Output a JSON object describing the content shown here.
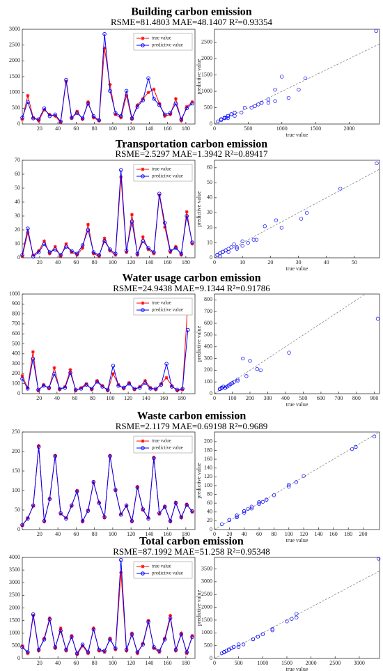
{
  "chart_data": [
    {
      "type": "line",
      "title": "Building carbon emission",
      "subtitle": "RSME=81.4803  MAE=48.1407 R²=0.93354",
      "x": [
        1,
        7,
        13,
        19,
        25,
        31,
        37,
        43,
        49,
        55,
        61,
        67,
        73,
        79,
        85,
        91,
        97,
        103,
        109,
        115,
        121,
        127,
        133,
        139,
        145,
        151,
        157,
        163,
        169,
        175,
        181,
        187
      ],
      "xlim": [
        1,
        190
      ],
      "xticks": [
        20,
        40,
        60,
        80,
        100,
        120,
        140,
        160,
        180
      ],
      "ylim": [
        0,
        3000
      ],
      "yticks": [
        0,
        500,
        1000,
        1500,
        2000,
        2500,
        3000
      ],
      "series": [
        {
          "name": "true value",
          "color": "#ff0000",
          "marker": "asterisk",
          "values": [
            150,
            900,
            200,
            100,
            450,
            300,
            250,
            50,
            1350,
            180,
            400,
            150,
            700,
            200,
            100,
            2400,
            1250,
            300,
            200,
            900,
            150,
            600,
            800,
            1000,
            1100,
            650,
            250,
            300,
            800,
            100,
            550,
            700
          ]
        },
        {
          "name": "predictive value",
          "color": "#0000ff",
          "marker": "circle",
          "values": [
            200,
            700,
            180,
            150,
            500,
            250,
            300,
            80,
            1400,
            200,
            350,
            180,
            650,
            250,
            120,
            2850,
            1050,
            350,
            250,
            1050,
            180,
            550,
            750,
            1450,
            800,
            600,
            300,
            350,
            650,
            150,
            500,
            650
          ]
        }
      ]
    },
    {
      "type": "scatter",
      "x_label": "true value",
      "y_label": "predictive value",
      "color": "#0000ff",
      "xlim": [
        0,
        2450
      ],
      "xticks": [
        0,
        500,
        1000,
        1500,
        2000
      ],
      "ylim": [
        0,
        2900
      ],
      "yticks": [
        0,
        500,
        1000,
        1500,
        2000,
        2500
      ],
      "x": [
        150,
        900,
        200,
        100,
        450,
        300,
        250,
        50,
        1350,
        180,
        400,
        150,
        700,
        200,
        100,
        2400,
        1250,
        300,
        200,
        900,
        150,
        600,
        800,
        1000,
        1100,
        650,
        250,
        300,
        800,
        100,
        550,
        700
      ],
      "y": [
        200,
        700,
        180,
        150,
        500,
        250,
        300,
        80,
        1400,
        200,
        350,
        180,
        650,
        250,
        120,
        2850,
        1050,
        350,
        250,
        1050,
        180,
        550,
        750,
        1450,
        800,
        600,
        300,
        350,
        650,
        150,
        500,
        650
      ]
    },
    {
      "type": "line",
      "title": "Transportation carbon emission",
      "subtitle": "RSME=2.5297  MAE=1.3942 R²=0.89417",
      "x": [
        1,
        7,
        13,
        19,
        25,
        31,
        37,
        43,
        49,
        55,
        61,
        67,
        73,
        79,
        85,
        91,
        97,
        103,
        109,
        115,
        121,
        127,
        133,
        139,
        145,
        151,
        157,
        163,
        169,
        175,
        181,
        187
      ],
      "xlim": [
        1,
        190
      ],
      "xticks": [
        20,
        40,
        60,
        80,
        100,
        120,
        140,
        160,
        180
      ],
      "ylim": [
        0,
        70
      ],
      "yticks": [
        0,
        10,
        20,
        30,
        40,
        50,
        60,
        70
      ],
      "series": [
        {
          "name": "true value",
          "color": "#ff0000",
          "marker": "asterisk",
          "values": [
            1,
            18,
            2,
            5,
            12,
            3,
            8,
            1,
            10,
            4,
            2,
            7,
            24,
            3,
            1,
            14,
            5,
            2,
            58,
            4,
            31,
            2,
            15,
            6,
            3,
            45,
            22,
            4,
            8,
            2,
            33,
            10
          ]
        },
        {
          "name": "predictive value",
          "color": "#0000ff",
          "marker": "circle",
          "values": [
            2,
            21,
            1,
            4,
            10,
            4,
            6,
            2,
            8,
            5,
            3,
            9,
            20,
            4,
            2,
            12,
            6,
            3,
            63,
            5,
            26,
            3,
            12,
            7,
            4,
            46,
            25,
            5,
            7,
            3,
            30,
            11
          ]
        }
      ]
    },
    {
      "type": "scatter",
      "x_label": "true value",
      "y_label": "predictive value",
      "color": "#0000ff",
      "xlim": [
        0,
        59
      ],
      "xticks": [
        0,
        10,
        20,
        30,
        40,
        50
      ],
      "ylim": [
        0,
        65
      ],
      "yticks": [
        0,
        10,
        20,
        30,
        40,
        50,
        60
      ],
      "x": [
        1,
        18,
        2,
        5,
        12,
        3,
        8,
        1,
        10,
        4,
        2,
        7,
        24,
        3,
        1,
        14,
        5,
        2,
        58,
        4,
        31,
        2,
        15,
        6,
        3,
        45,
        22,
        4,
        8,
        2,
        33,
        10
      ],
      "y": [
        2,
        21,
        1,
        4,
        10,
        4,
        6,
        2,
        8,
        5,
        3,
        9,
        20,
        4,
        2,
        12,
        6,
        3,
        63,
        5,
        26,
        3,
        12,
        7,
        4,
        46,
        25,
        5,
        7,
        3,
        30,
        11
      ]
    },
    {
      "type": "line",
      "title": "Water usage carbon emission",
      "subtitle": "RSME=24.9438  MAE=9.1344 R²=0.91786",
      "x": [
        1,
        7,
        13,
        19,
        25,
        31,
        37,
        43,
        49,
        55,
        61,
        67,
        73,
        79,
        85,
        91,
        97,
        103,
        109,
        115,
        121,
        127,
        133,
        139,
        145,
        151,
        157,
        163,
        169,
        175,
        181,
        187
      ],
      "xlim": [
        1,
        195
      ],
      "xticks": [
        20,
        40,
        60,
        80,
        100,
        120,
        140,
        160,
        180
      ],
      "ylim": [
        0,
        1000
      ],
      "yticks": [
        0,
        100,
        200,
        300,
        400,
        500,
        600,
        700,
        800,
        900,
        1000
      ],
      "series": [
        {
          "name": "true value",
          "color": "#ff0000",
          "marker": "asterisk",
          "values": [
            180,
            60,
            420,
            30,
            90,
            50,
            260,
            40,
            70,
            240,
            30,
            60,
            100,
            40,
            130,
            80,
            30,
            200,
            90,
            50,
            110,
            40,
            70,
            130,
            60,
            40,
            100,
            160,
            80,
            30,
            40,
            920
          ]
        },
        {
          "name": "predictive value",
          "color": "#0000ff",
          "marker": "circle",
          "values": [
            150,
            50,
            350,
            40,
            80,
            60,
            200,
            50,
            60,
            210,
            40,
            50,
            90,
            50,
            120,
            70,
            40,
            280,
            80,
            60,
            100,
            50,
            60,
            110,
            50,
            50,
            90,
            300,
            70,
            40,
            50,
            640
          ]
        }
      ]
    },
    {
      "type": "scatter",
      "x_label": "true value",
      "y_label": "predictive value",
      "color": "#0000ff",
      "xlim": [
        0,
        930
      ],
      "xticks": [
        0,
        100,
        200,
        300,
        400,
        500,
        600,
        700,
        800,
        900
      ],
      "ylim": [
        0,
        850
      ],
      "yticks": [
        0,
        100,
        200,
        300,
        400,
        500,
        600,
        700,
        800
      ],
      "x": [
        180,
        60,
        420,
        30,
        90,
        50,
        260,
        40,
        70,
        240,
        30,
        60,
        100,
        40,
        130,
        80,
        30,
        200,
        90,
        50,
        110,
        40,
        70,
        130,
        60,
        40,
        100,
        160,
        80,
        30,
        40,
        920
      ],
      "y": [
        150,
        50,
        350,
        40,
        80,
        60,
        200,
        50,
        60,
        210,
        40,
        50,
        90,
        50,
        120,
        70,
        40,
        280,
        80,
        60,
        100,
        50,
        60,
        110,
        50,
        50,
        90,
        300,
        70,
        40,
        50,
        640
      ]
    },
    {
      "type": "line",
      "title": "Waste carbon emission",
      "subtitle": "RSME=2.1179  MAE=0.69198 R²=0.9689",
      "x": [
        1,
        7,
        13,
        19,
        25,
        31,
        37,
        43,
        49,
        55,
        61,
        67,
        73,
        79,
        85,
        91,
        97,
        103,
        109,
        115,
        121,
        127,
        133,
        139,
        145,
        151,
        157,
        163,
        169,
        175,
        181,
        187
      ],
      "xlim": [
        1,
        190
      ],
      "xticks": [
        20,
        40,
        60,
        80,
        100,
        120,
        140,
        160,
        180
      ],
      "ylim": [
        0,
        250
      ],
      "yticks": [
        0,
        50,
        100,
        150,
        200,
        250
      ],
      "series": [
        {
          "name": "true value",
          "color": "#ff0000",
          "marker": "asterisk",
          "values": [
            10,
            30,
            60,
            215,
            20,
            80,
            190,
            40,
            30,
            60,
            100,
            20,
            50,
            120,
            70,
            30,
            190,
            100,
            40,
            60,
            20,
            110,
            50,
            30,
            185,
            40,
            60,
            20,
            70,
            30,
            65,
            45
          ]
        },
        {
          "name": "predictive value",
          "color": "#0000ff",
          "marker": "circle",
          "values": [
            12,
            28,
            62,
            212,
            22,
            78,
            188,
            42,
            28,
            62,
            98,
            22,
            48,
            122,
            68,
            32,
            188,
            102,
            38,
            62,
            22,
            108,
            52,
            28,
            183,
            42,
            58,
            22,
            68,
            32,
            63,
            47
          ]
        }
      ]
    },
    {
      "type": "scatter",
      "x_label": "true value",
      "y_label": "predictive value",
      "color": "#0000ff",
      "xlim": [
        0,
        222
      ],
      "xticks": [
        0,
        20,
        40,
        60,
        80,
        100,
        120,
        140,
        160,
        180,
        200
      ],
      "ylim": [
        0,
        222
      ],
      "yticks": [
        0,
        20,
        40,
        60,
        80,
        100,
        120,
        140,
        160,
        180,
        200
      ],
      "x": [
        10,
        30,
        60,
        215,
        20,
        80,
        190,
        40,
        30,
        60,
        100,
        20,
        50,
        120,
        70,
        30,
        190,
        100,
        40,
        60,
        20,
        110,
        50,
        30,
        185,
        40,
        60,
        20,
        70,
        30,
        65,
        45
      ],
      "y": [
        12,
        28,
        62,
        212,
        22,
        78,
        188,
        42,
        28,
        62,
        98,
        22,
        48,
        122,
        68,
        32,
        188,
        102,
        38,
        62,
        22,
        108,
        52,
        28,
        183,
        42,
        58,
        22,
        68,
        32,
        63,
        47
      ]
    },
    {
      "type": "line",
      "title": "Total carbon emission",
      "subtitle": "RSME=87.1992  MAE=51.258 R²=0.95348",
      "x": [
        1,
        7,
        13,
        19,
        25,
        31,
        37,
        43,
        49,
        55,
        61,
        67,
        73,
        79,
        85,
        91,
        97,
        103,
        109,
        115,
        121,
        127,
        133,
        139,
        145,
        151,
        157,
        163,
        169,
        175,
        181,
        187
      ],
      "xlim": [
        1,
        190
      ],
      "xticks": [
        20,
        40,
        60,
        80,
        100,
        120,
        140,
        160,
        180
      ],
      "ylim": [
        0,
        4000
      ],
      "yticks": [
        0,
        500,
        1000,
        1500,
        2000,
        2500,
        3000,
        3500,
        4000
      ],
      "series": [
        {
          "name": "true value",
          "color": "#ff0000",
          "marker": "asterisk",
          "values": [
            500,
            200,
            1700,
            300,
            800,
            1600,
            400,
            1200,
            300,
            900,
            150,
            500,
            200,
            1200,
            300,
            250,
            800,
            350,
            3400,
            300,
            1000,
            200,
            600,
            1500,
            400,
            250,
            800,
            1700,
            300,
            1000,
            200,
            900
          ]
        },
        {
          "name": "predictive value",
          "color": "#0000ff",
          "marker": "circle",
          "values": [
            450,
            250,
            1750,
            350,
            750,
            1550,
            450,
            1100,
            350,
            850,
            200,
            550,
            250,
            1150,
            350,
            300,
            750,
            400,
            3900,
            350,
            950,
            250,
            550,
            1450,
            450,
            300,
            750,
            1600,
            350,
            950,
            250,
            850
          ]
        }
      ]
    },
    {
      "type": "scatter",
      "x_label": "true value",
      "y_label": "predictive value",
      "color": "#0000ff",
      "xlim": [
        0,
        3420
      ],
      "xticks": [
        0,
        500,
        1000,
        1500,
        2000,
        2500,
        3000
      ],
      "ylim": [
        0,
        3950
      ],
      "yticks": [
        0,
        500,
        1000,
        1500,
        2000,
        2500,
        3000,
        3500
      ],
      "x": [
        500,
        200,
        1700,
        300,
        800,
        1600,
        400,
        1200,
        300,
        900,
        150,
        500,
        200,
        1200,
        300,
        250,
        800,
        350,
        3400,
        300,
        1000,
        200,
        600,
        1500,
        400,
        250,
        800,
        1700,
        300,
        1000,
        200,
        900
      ],
      "y": [
        450,
        250,
        1750,
        350,
        750,
        1550,
        450,
        1100,
        350,
        850,
        200,
        550,
        250,
        1150,
        350,
        300,
        750,
        400,
        3900,
        350,
        950,
        250,
        550,
        1450,
        450,
        300,
        750,
        1600,
        350,
        950,
        250,
        850
      ]
    }
  ]
}
